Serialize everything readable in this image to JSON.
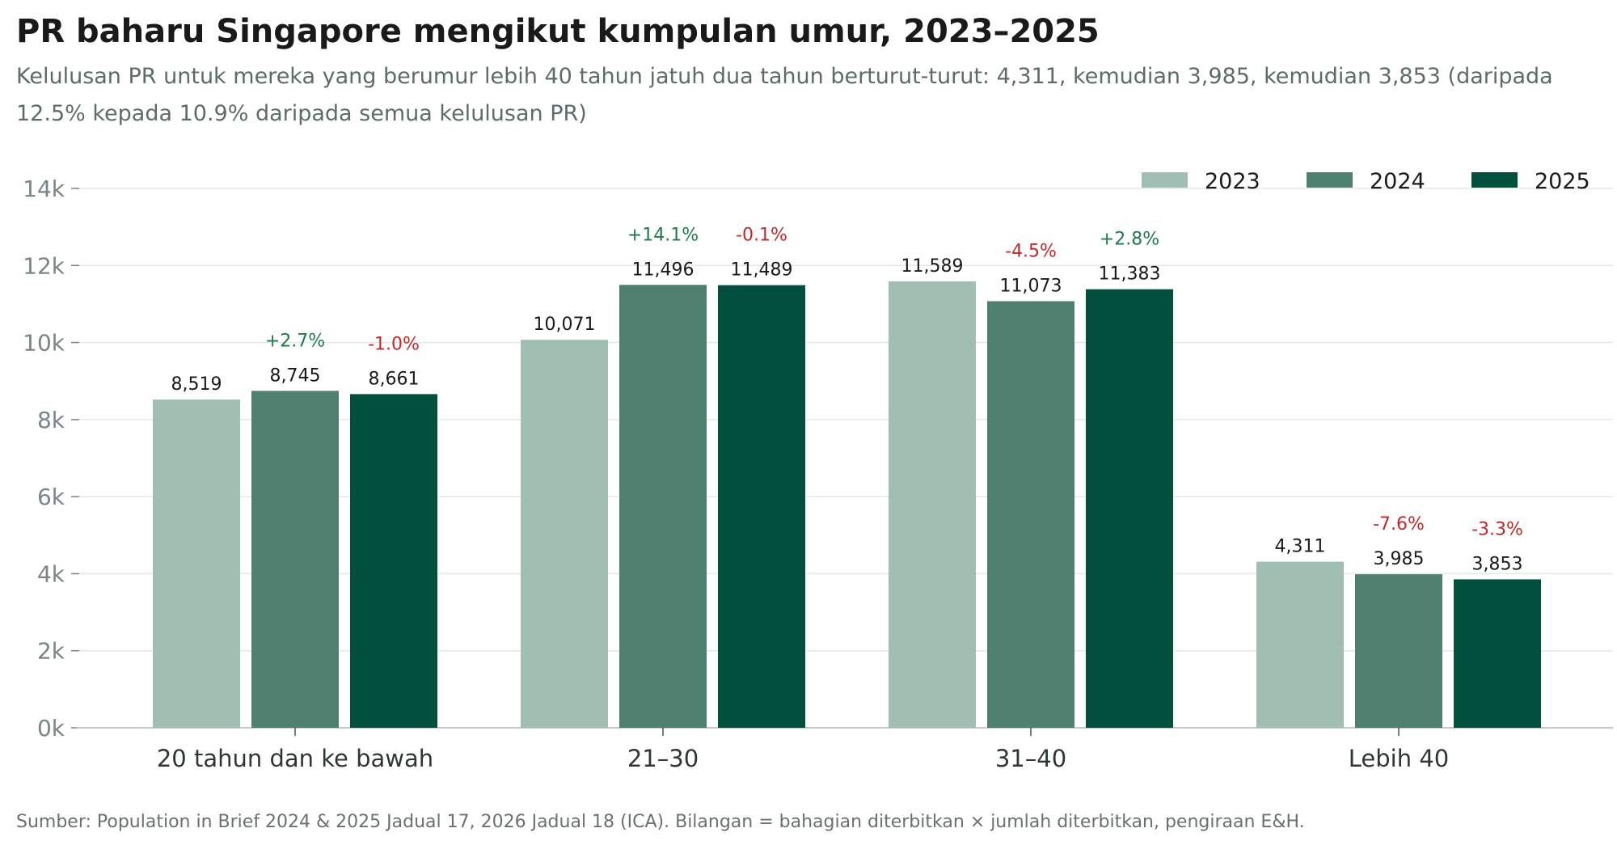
{
  "header": {
    "title": "PR baharu Singapore mengikut kumpulan umur, 2023–2025",
    "subtitle": "Kelulusan PR untuk mereka yang berumur lebih 40 tahun jatuh dua tahun berturut-turut: 4,311, kemudian 3,985, kemudian 3,853 (daripada 12.5% kepada 10.9% daripada semua kelulusan PR)"
  },
  "footer": {
    "source": "Sumber: Population in Brief 2024 & 2025 Jadual 17, 2026 Jadual 18 (ICA). Bilangan = bahagian diterbitkan × jumlah diterbitkan, pengiraan E&H."
  },
  "colors": {
    "up": "#1f7a4d",
    "down": "#c62828",
    "grid": "#e6e6e6",
    "axis": "#c8c8c8"
  },
  "chart_data": {
    "type": "bar",
    "categories": [
      "20 tahun dan ke bawah",
      "21–30",
      "31–40",
      "Lebih 40"
    ],
    "series": [
      {
        "name": "2023",
        "color": "#a0beb2",
        "values": [
          8519,
          10071,
          11589,
          4311
        ],
        "labels": [
          "8,519",
          "10,071",
          "11,589",
          "4,311"
        ],
        "changes": [
          "",
          "",
          "",
          ""
        ]
      },
      {
        "name": "2024",
        "color": "#4f7f6e",
        "values": [
          8745,
          11496,
          11073,
          3985
        ],
        "labels": [
          "8,745",
          "11,496",
          "11,073",
          "3,985"
        ],
        "changes": [
          "+2.7%",
          "+14.1%",
          "-4.5%",
          "-7.6%"
        ]
      },
      {
        "name": "2025",
        "color": "#00503d",
        "values": [
          8661,
          11489,
          11383,
          3853
        ],
        "labels": [
          "8,661",
          "11,489",
          "11,383",
          "3,853"
        ],
        "changes": [
          "-1.0%",
          "-0.1%",
          "+2.8%",
          "-3.3%"
        ]
      }
    ],
    "ylim": [
      0,
      14000
    ],
    "yticks": [
      0,
      2000,
      4000,
      6000,
      8000,
      10000,
      12000,
      14000
    ],
    "ytick_labels": [
      "0k",
      "2k",
      "4k",
      "6k",
      "8k",
      "10k",
      "12k",
      "14k"
    ],
    "xlabel": "",
    "ylabel": "",
    "grid": true,
    "legend": "top-right"
  }
}
